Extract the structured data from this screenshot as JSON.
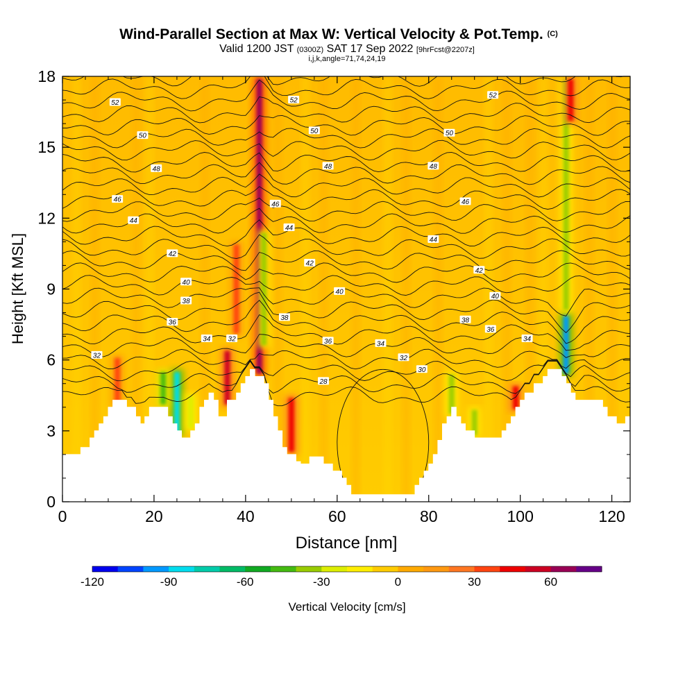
{
  "chart_data": {
    "type": "heatmap",
    "title": "Wind-Parallel Section at Max W: Vertical Velocity & Pot.Temp.",
    "title_mark": "(C)",
    "subtitle_valid": "Valid 1200 JST",
    "subtitle_zulu": "(0300Z)",
    "subtitle_date": "SAT 17 Sep 2022",
    "subtitle_fcst": "[9hrFcst@2207z]",
    "subtitle2": "i,j,k,angle=71,74,24,19",
    "xlabel": "Distance [nm]",
    "ylabel": "Height [Kft MSL]",
    "xlim": [
      0,
      124
    ],
    "ylim": [
      0,
      18
    ],
    "xticks": [
      "0",
      "20",
      "40",
      "60",
      "80",
      "100",
      "120"
    ],
    "yticks": [
      "0",
      "3",
      "6",
      "9",
      "12",
      "15",
      "18"
    ],
    "colorbar": {
      "label": "Vertical Velocity [cm/s]",
      "range": [
        -120,
        80
      ],
      "ticks": [
        "-120",
        "-90",
        "-60",
        "-30",
        "0",
        "30",
        "60"
      ],
      "colors": [
        "#0000ee",
        "#0044ff",
        "#0099ff",
        "#00ddee",
        "#00ccaa",
        "#00bb66",
        "#11aa22",
        "#44bb11",
        "#99cc00",
        "#ddee00",
        "#ffee00",
        "#ffcc00",
        "#ffaa00",
        "#ff9911",
        "#ff7722",
        "#ff4411",
        "#ee0000",
        "#cc0022",
        "#990055",
        "#660088"
      ]
    },
    "terrain_kft": [
      [
        0,
        2.0
      ],
      [
        4,
        2.0
      ],
      [
        4,
        2.3
      ],
      [
        6,
        2.3
      ],
      [
        6,
        2.7
      ],
      [
        7,
        2.7
      ],
      [
        7,
        3.0
      ],
      [
        8,
        3.0
      ],
      [
        8,
        3.3
      ],
      [
        9,
        3.3
      ],
      [
        9,
        3.6
      ],
      [
        10,
        3.6
      ],
      [
        10,
        4.0
      ],
      [
        11,
        4.0
      ],
      [
        11,
        4.3
      ],
      [
        14,
        4.3
      ],
      [
        14,
        4.0
      ],
      [
        16,
        4.0
      ],
      [
        16,
        3.6
      ],
      [
        17,
        3.6
      ],
      [
        17,
        3.3
      ],
      [
        18,
        3.3
      ],
      [
        18,
        3.6
      ],
      [
        19,
        3.6
      ],
      [
        19,
        4.0
      ],
      [
        23,
        4.0
      ],
      [
        23,
        3.6
      ],
      [
        24,
        3.6
      ],
      [
        24,
        3.3
      ],
      [
        25,
        3.3
      ],
      [
        25,
        3.0
      ],
      [
        26,
        3.0
      ],
      [
        26,
        2.7
      ],
      [
        28,
        2.7
      ],
      [
        28,
        3.0
      ],
      [
        29,
        3.0
      ],
      [
        29,
        3.3
      ],
      [
        30,
        3.3
      ],
      [
        30,
        4.0
      ],
      [
        31,
        4.0
      ],
      [
        31,
        4.3
      ],
      [
        32,
        4.3
      ],
      [
        32,
        4.6
      ],
      [
        33,
        4.6
      ],
      [
        33,
        4.3
      ],
      [
        34,
        4.3
      ],
      [
        34,
        3.6
      ],
      [
        36,
        3.6
      ],
      [
        36,
        4.3
      ],
      [
        38,
        4.3
      ],
      [
        38,
        4.6
      ],
      [
        39,
        4.6
      ],
      [
        39,
        5.0
      ],
      [
        40,
        5.0
      ],
      [
        40,
        5.3
      ],
      [
        41,
        5.3
      ],
      [
        41,
        5.6
      ],
      [
        42,
        5.6
      ],
      [
        42,
        5.3
      ],
      [
        44,
        5.3
      ],
      [
        44,
        5.0
      ],
      [
        45,
        5.0
      ],
      [
        45,
        4.3
      ],
      [
        46,
        4.3
      ],
      [
        46,
        3.6
      ],
      [
        47,
        3.6
      ],
      [
        47,
        3.0
      ],
      [
        48,
        3.0
      ],
      [
        48,
        2.3
      ],
      [
        49,
        2.3
      ],
      [
        49,
        2.0
      ],
      [
        51,
        2.0
      ],
      [
        51,
        1.7
      ],
      [
        52,
        1.7
      ],
      [
        52,
        1.6
      ],
      [
        54,
        1.6
      ],
      [
        54,
        1.9
      ],
      [
        57,
        1.9
      ],
      [
        57,
        1.6
      ],
      [
        59,
        1.6
      ],
      [
        59,
        1.3
      ],
      [
        61,
        1.3
      ],
      [
        61,
        1.0
      ],
      [
        62,
        1.0
      ],
      [
        62,
        0.7
      ],
      [
        63,
        0.7
      ],
      [
        63,
        0.3
      ],
      [
        77,
        0.3
      ],
      [
        77,
        0.7
      ],
      [
        78,
        0.7
      ],
      [
        78,
        1.0
      ],
      [
        79,
        1.0
      ],
      [
        79,
        1.3
      ],
      [
        80,
        1.3
      ],
      [
        80,
        1.6
      ],
      [
        81,
        1.6
      ],
      [
        81,
        2.0
      ],
      [
        82,
        2.0
      ],
      [
        82,
        2.6
      ],
      [
        83,
        2.6
      ],
      [
        83,
        3.3
      ],
      [
        84,
        3.3
      ],
      [
        84,
        3.6
      ],
      [
        85,
        3.6
      ],
      [
        85,
        4.0
      ],
      [
        86,
        4.0
      ],
      [
        86,
        3.6
      ],
      [
        87,
        3.6
      ],
      [
        87,
        3.3
      ],
      [
        88,
        3.3
      ],
      [
        88,
        3.0
      ],
      [
        90,
        3.0
      ],
      [
        90,
        2.7
      ],
      [
        96,
        2.7
      ],
      [
        96,
        3.0
      ],
      [
        97,
        3.0
      ],
      [
        97,
        3.3
      ],
      [
        98,
        3.3
      ],
      [
        98,
        3.6
      ],
      [
        99,
        3.6
      ],
      [
        99,
        4.0
      ],
      [
        100,
        4.0
      ],
      [
        100,
        4.3
      ],
      [
        101,
        4.3
      ],
      [
        101,
        4.6
      ],
      [
        103,
        4.6
      ],
      [
        103,
        5.0
      ],
      [
        105,
        5.0
      ],
      [
        105,
        5.3
      ],
      [
        106,
        5.3
      ],
      [
        106,
        5.6
      ],
      [
        109,
        5.6
      ],
      [
        109,
        5.3
      ],
      [
        110,
        5.3
      ],
      [
        110,
        5.0
      ],
      [
        111,
        5.0
      ],
      [
        111,
        4.6
      ],
      [
        112,
        4.6
      ],
      [
        112,
        4.3
      ],
      [
        118,
        4.3
      ],
      [
        118,
        4.0
      ],
      [
        119,
        4.0
      ],
      [
        119,
        3.6
      ],
      [
        121,
        3.6
      ],
      [
        121,
        3.3
      ],
      [
        123,
        3.3
      ],
      [
        123,
        3.6
      ],
      [
        124,
        3.6
      ]
    ],
    "updraft_bands": [
      {
        "x": 12,
        "y0": 4.0,
        "y1": 6.2,
        "w": 30,
        "sign": 1
      },
      {
        "x": 25,
        "y0": 2.8,
        "y1": 5.6,
        "w": -85,
        "sign": -1
      },
      {
        "x": 22,
        "y0": 4.0,
        "y1": 5.6,
        "w": -45,
        "sign": -1
      },
      {
        "x": 28,
        "y0": 3.0,
        "y1": 4.6,
        "w": -30,
        "sign": -1
      },
      {
        "x": 36,
        "y0": 4.0,
        "y1": 6.5,
        "w": 50,
        "sign": 1
      },
      {
        "x": 38,
        "y0": 7.0,
        "y1": 11.0,
        "w": 35,
        "sign": 1
      },
      {
        "x": 43,
        "y0": 5.3,
        "y1": 18,
        "w": 60,
        "sign": 1
      },
      {
        "x": 44,
        "y0": 6.5,
        "y1": 11.5,
        "w": -35,
        "sign": -1
      },
      {
        "x": 50,
        "y0": 2.0,
        "y1": 4.5,
        "w": 40,
        "sign": 1
      },
      {
        "x": 85,
        "y0": 3.6,
        "y1": 5.5,
        "w": -40,
        "sign": -1
      },
      {
        "x": 90,
        "y0": 2.7,
        "y1": 4.0,
        "w": -35,
        "sign": -1
      },
      {
        "x": 99,
        "y0": 3.8,
        "y1": 5.0,
        "w": 40,
        "sign": 1
      },
      {
        "x": 110,
        "y0": 5.3,
        "y1": 8.0,
        "w": -95,
        "sign": -1
      },
      {
        "x": 110,
        "y0": 8.0,
        "y1": 18,
        "w": -35,
        "sign": -1
      },
      {
        "x": 111,
        "y0": 16,
        "y1": 18,
        "w": 40,
        "sign": 1
      }
    ],
    "theta_labels": [
      {
        "text": "52",
        "x": 11.5,
        "y": 16.9
      },
      {
        "text": "52",
        "x": 50.5,
        "y": 17.0
      },
      {
        "text": "52",
        "x": 94.0,
        "y": 17.2
      },
      {
        "text": "50",
        "x": 17.5,
        "y": 15.5
      },
      {
        "text": "50",
        "x": 55.0,
        "y": 15.7
      },
      {
        "text": "50",
        "x": 84.5,
        "y": 15.6
      },
      {
        "text": "48",
        "x": 20.5,
        "y": 14.1
      },
      {
        "text": "48",
        "x": 58.0,
        "y": 14.2
      },
      {
        "text": "48",
        "x": 81.0,
        "y": 14.2
      },
      {
        "text": "46",
        "x": 12.0,
        "y": 12.8
      },
      {
        "text": "46",
        "x": 46.5,
        "y": 12.6
      },
      {
        "text": "46",
        "x": 88.0,
        "y": 12.7
      },
      {
        "text": "44",
        "x": 15.5,
        "y": 11.9
      },
      {
        "text": "44",
        "x": 49.5,
        "y": 11.6
      },
      {
        "text": "44",
        "x": 81.0,
        "y": 11.1
      },
      {
        "text": "42",
        "x": 24.0,
        "y": 10.5
      },
      {
        "text": "42",
        "x": 54.0,
        "y": 10.1
      },
      {
        "text": "42",
        "x": 91.0,
        "y": 9.8
      },
      {
        "text": "40",
        "x": 27.0,
        "y": 9.3
      },
      {
        "text": "40",
        "x": 60.5,
        "y": 8.9
      },
      {
        "text": "40",
        "x": 94.5,
        "y": 8.7
      },
      {
        "text": "38",
        "x": 27.0,
        "y": 8.5
      },
      {
        "text": "38",
        "x": 48.5,
        "y": 7.8
      },
      {
        "text": "38",
        "x": 88.0,
        "y": 7.7
      },
      {
        "text": "36",
        "x": 24.0,
        "y": 7.6
      },
      {
        "text": "36",
        "x": 58.0,
        "y": 6.8
      },
      {
        "text": "36",
        "x": 93.5,
        "y": 7.3
      },
      {
        "text": "34",
        "x": 31.5,
        "y": 6.9
      },
      {
        "text": "34",
        "x": 69.5,
        "y": 6.7
      },
      {
        "text": "34",
        "x": 101.5,
        "y": 6.9
      },
      {
        "text": "32",
        "x": 7.5,
        "y": 6.2
      },
      {
        "text": "32",
        "x": 37.0,
        "y": 6.9
      },
      {
        "text": "32",
        "x": 74.5,
        "y": 6.1
      },
      {
        "text": "30",
        "x": 78.5,
        "y": 5.6
      },
      {
        "text": "28",
        "x": 57.0,
        "y": 5.1
      }
    ]
  }
}
